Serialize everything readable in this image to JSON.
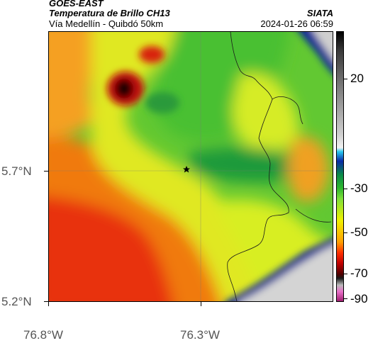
{
  "header": {
    "satellite": "GOES-EAST",
    "product": "Temperatura de Brillo CH13",
    "region": "Vía Medellín - Quibdó 50km",
    "organization": "SIATA",
    "timestamp": "2024-01-26 06:59"
  },
  "map": {
    "lat_labels": [
      "5.7°N",
      "5.2°N"
    ],
    "lon_labels": [
      "76.8°W",
      "76.3°W"
    ],
    "marker": "star",
    "gridlines": true,
    "borders": "department boundaries (black lines)"
  },
  "colorbar": {
    "tick_labels": [
      "20",
      "-30",
      "-50",
      "-70",
      "-90"
    ],
    "colors": {
      "top": "#000000",
      "gray": "#c0c0c0",
      "cyan": "#28c8f0",
      "blue": "#0a2aa8",
      "green": "#2eb82e",
      "yellow": "#f0f000",
      "orange": "#ffa000",
      "red": "#ff3000",
      "darkred": "#500000",
      "magenta": "#e86ec8"
    }
  }
}
